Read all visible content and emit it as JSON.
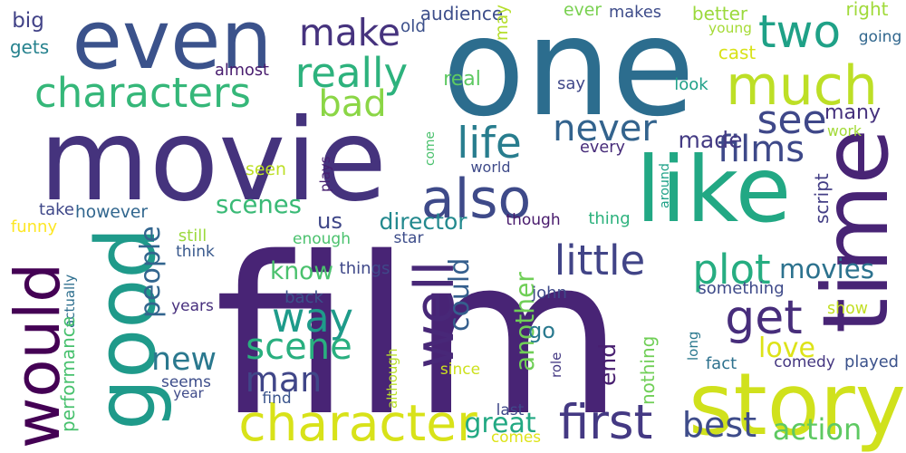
{
  "words": [
    {
      "text": "film",
      "color": "#482475"
    },
    {
      "text": "one",
      "color": "#2c6d8e"
    },
    {
      "text": "movie",
      "color": "#45337d"
    },
    {
      "text": "like",
      "color": "#22a884"
    },
    {
      "text": "even",
      "color": "#3b528b"
    },
    {
      "text": "time",
      "color": "#482475"
    },
    {
      "text": "good",
      "color": "#1f9a8a"
    },
    {
      "text": "story",
      "color": "#d0e11c"
    },
    {
      "text": "would",
      "color": "#440154"
    },
    {
      "text": "character",
      "color": "#d8e219"
    },
    {
      "text": "much",
      "color": "#bddf26"
    },
    {
      "text": "characters",
      "color": "#35b779"
    },
    {
      "text": "also",
      "color": "#3e4a89"
    },
    {
      "text": "two",
      "color": "#1fa187"
    },
    {
      "text": "well",
      "color": "#482878"
    },
    {
      "text": "first",
      "color": "#443983"
    },
    {
      "text": "get",
      "color": "#472d7b"
    },
    {
      "text": "make",
      "color": "#46337e"
    },
    {
      "text": "really",
      "color": "#2db27d"
    },
    {
      "text": "see",
      "color": "#3f4889"
    },
    {
      "text": "life",
      "color": "#287d8e"
    },
    {
      "text": "way",
      "color": "#1e9b8a"
    },
    {
      "text": "bad",
      "color": "#8bd646"
    },
    {
      "text": "films",
      "color": "#3e4989"
    },
    {
      "text": "could",
      "color": "#355f8d"
    },
    {
      "text": "plot",
      "color": "#26ad81"
    },
    {
      "text": "little",
      "color": "#414487"
    },
    {
      "text": "never",
      "color": "#33638d"
    },
    {
      "text": "scene",
      "color": "#29af7f"
    },
    {
      "text": "people",
      "color": "#32658e"
    },
    {
      "text": "many",
      "color": "#46327e"
    },
    {
      "text": "man",
      "color": "#404688"
    },
    {
      "text": "new",
      "color": "#2a788e"
    },
    {
      "text": "scenes",
      "color": "#3aba76"
    },
    {
      "text": "best",
      "color": "#3e4c8a"
    },
    {
      "text": "action",
      "color": "#5ec962"
    },
    {
      "text": "director",
      "color": "#23898e"
    },
    {
      "text": "movies",
      "color": "#2c728e"
    },
    {
      "text": "made",
      "color": "#443b84"
    },
    {
      "text": "another",
      "color": "#70cf57"
    },
    {
      "text": "great",
      "color": "#23a983"
    },
    {
      "text": "end",
      "color": "#481f70"
    },
    {
      "text": "love",
      "color": "#dde318"
    },
    {
      "text": "go",
      "color": "#29798e"
    },
    {
      "text": "know",
      "color": "#4ac16d"
    },
    {
      "text": "us",
      "color": "#3f4788"
    },
    {
      "text": "big",
      "color": "#414287"
    },
    {
      "text": "audience",
      "color": "#3d4e8a"
    },
    {
      "text": "old",
      "color": "#3c508b"
    },
    {
      "text": "may",
      "color": "#b5de2b"
    },
    {
      "text": "ever",
      "color": "#7ad151"
    },
    {
      "text": "makes",
      "color": "#3e4c8a"
    },
    {
      "text": "better",
      "color": "#9bd93c"
    },
    {
      "text": "right",
      "color": "#a0da39"
    },
    {
      "text": "young",
      "color": "#a5db36"
    },
    {
      "text": "going",
      "color": "#31678e"
    },
    {
      "text": "cast",
      "color": "#d8e219"
    },
    {
      "text": "gets",
      "color": "#26828e"
    },
    {
      "text": "almost",
      "color": "#481c6e"
    },
    {
      "text": "real",
      "color": "#5ec962"
    },
    {
      "text": "say",
      "color": "#3f4889"
    },
    {
      "text": "look",
      "color": "#1fa088"
    },
    {
      "text": "work",
      "color": "#a2da37"
    },
    {
      "text": "seen",
      "color": "#bddf26"
    },
    {
      "text": "plays",
      "color": "#482071"
    },
    {
      "text": "come",
      "color": "#4ac16d"
    },
    {
      "text": "every",
      "color": "#472c7a"
    },
    {
      "text": "world",
      "color": "#3e4a89"
    },
    {
      "text": "around",
      "color": "#1fa188"
    },
    {
      "text": "script",
      "color": "#433e85"
    },
    {
      "text": "take",
      "color": "#3f4889"
    },
    {
      "text": "however",
      "color": "#31668e"
    },
    {
      "text": "funny",
      "color": "#fde725"
    },
    {
      "text": "still",
      "color": "#9bd93c"
    },
    {
      "text": "though",
      "color": "#481a6c"
    },
    {
      "text": "thing",
      "color": "#2db27d"
    },
    {
      "text": "think",
      "color": "#38588c"
    },
    {
      "text": "enough",
      "color": "#4ac16d"
    },
    {
      "text": "star",
      "color": "#3d4d8a"
    },
    {
      "text": "things",
      "color": "#3f4889"
    },
    {
      "text": "actually",
      "color": "#2e6f8e"
    },
    {
      "text": "john",
      "color": "#3e4989"
    },
    {
      "text": "something",
      "color": "#3e4a89"
    },
    {
      "text": "years",
      "color": "#472f7d"
    },
    {
      "text": "back",
      "color": "#3b528b"
    },
    {
      "text": "show",
      "color": "#c2df23"
    },
    {
      "text": "long",
      "color": "#2a788e"
    },
    {
      "text": "performance",
      "color": "#48c16e"
    },
    {
      "text": "seems",
      "color": "#3d4d8a"
    },
    {
      "text": "although",
      "color": "#b8de29"
    },
    {
      "text": "since",
      "color": "#cde11d"
    },
    {
      "text": "nothing",
      "color": "#70cf57"
    },
    {
      "text": "role",
      "color": "#443983"
    },
    {
      "text": "fact",
      "color": "#2d718e"
    },
    {
      "text": "comedy",
      "color": "#453781"
    },
    {
      "text": "played",
      "color": "#3b528b"
    },
    {
      "text": "year",
      "color": "#3e4a89"
    },
    {
      "text": "find",
      "color": "#3a548c"
    },
    {
      "text": "last",
      "color": "#3f4889"
    },
    {
      "text": "comes",
      "color": "#dde318"
    }
  ]
}
